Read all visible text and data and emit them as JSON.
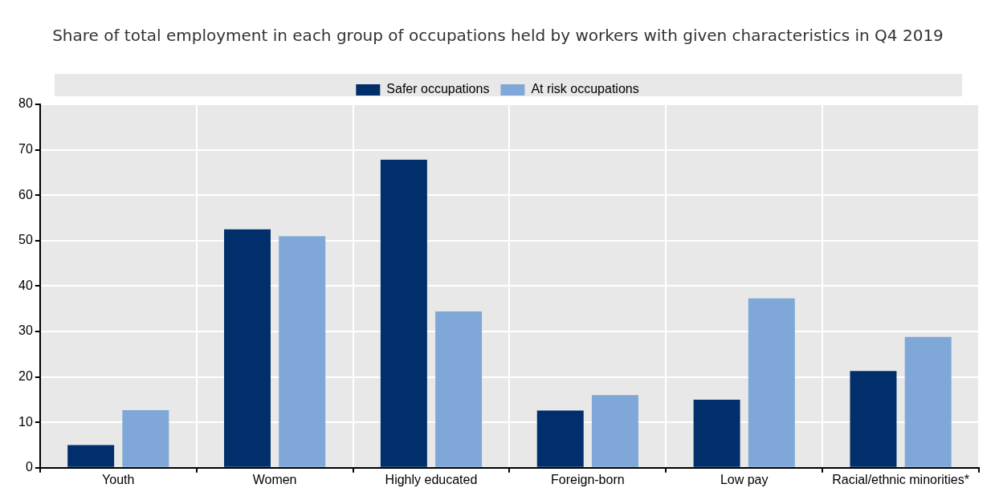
{
  "chart_data": {
    "type": "bar",
    "title": "Share of total employment in each group of occupations held by workers with given characteristics in Q4 2019",
    "categories": [
      "Youth",
      "Women",
      "Highly educated",
      "Foreign-born",
      "Low pay",
      "Racial/ethnic minorities*"
    ],
    "series": [
      {
        "name": "Safer occupations",
        "color": "#002f6c",
        "values": [
          5.0,
          52.5,
          67.8,
          12.6,
          15.0,
          21.3
        ]
      },
      {
        "name": "At risk occupations",
        "color": "#7fa8d8",
        "values": [
          12.7,
          51.0,
          34.4,
          16.0,
          37.3,
          28.8
        ]
      }
    ],
    "ylim": [
      0,
      80
    ],
    "yticks": [
      0,
      10,
      20,
      30,
      40,
      50,
      60,
      70,
      80
    ],
    "grid": true,
    "legend": "top"
  }
}
